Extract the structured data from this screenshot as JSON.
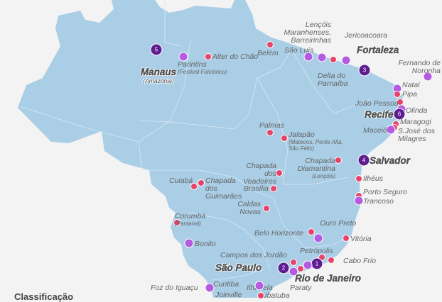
{
  "colors": {
    "land": "#a9cee6",
    "border": "#dbe9f3",
    "background": "#f3f3f3",
    "top": "#5d1c8f",
    "highlight": "#b55be2",
    "other": "#e8436b"
  },
  "legend": {
    "title": "Classificação"
  },
  "places": [
    {
      "name": "Manaus",
      "sub": "(Amazônia)",
      "type": "top",
      "rank": "5"
    },
    {
      "name": "Parintins",
      "sub": "(Festival Folclórico)",
      "type": "highlight"
    },
    {
      "name": "Alter do Chão",
      "type": "other"
    },
    {
      "name": "Belém",
      "type": "other"
    },
    {
      "name": "São Luís",
      "type": "highlight"
    },
    {
      "name": "Lençóis Maranhenses, Barreirinhas",
      "type": "highlight"
    },
    {
      "name": "Delta do Parnaíba",
      "type": "other"
    },
    {
      "name": "Jericoacoara",
      "type": "highlight"
    },
    {
      "name": "Fortaleza",
      "type": "top",
      "rank": "3"
    },
    {
      "name": "Fernando de Noronha",
      "type": "highlight"
    },
    {
      "name": "Natal",
      "type": "highlight"
    },
    {
      "name": "Pipa",
      "type": "other"
    },
    {
      "name": "João Pessoa",
      "type": "other"
    },
    {
      "name": "Olinda",
      "type": "highlight"
    },
    {
      "name": "Recife",
      "type": "top",
      "rank": "6"
    },
    {
      "name": "Maragogi",
      "type": "other"
    },
    {
      "name": "S.José dos Milagres",
      "type": "other"
    },
    {
      "name": "Maceió",
      "type": "highlight"
    },
    {
      "name": "Palmas",
      "type": "other"
    },
    {
      "name": "Jalapão",
      "sub": "(Mateiros, Ponte Alta, São Félix)",
      "type": "other"
    },
    {
      "name": "Chapada Diamantina",
      "sub": "(Lençóis)",
      "type": "other"
    },
    {
      "name": "Salvador",
      "type": "top",
      "rank": "4"
    },
    {
      "name": "Ilhéus",
      "type": "other"
    },
    {
      "name": "Porto Seguro",
      "type": "other"
    },
    {
      "name": "Trancoso",
      "type": "highlight"
    },
    {
      "name": "Chapada dos Veadeiros",
      "type": "other"
    },
    {
      "name": "Cuiabá",
      "type": "other"
    },
    {
      "name": "Chapada dos Guimarães",
      "type": "other"
    },
    {
      "name": "Brasília",
      "type": "other"
    },
    {
      "name": "Caldas Novas",
      "type": "other"
    },
    {
      "name": "Corumbá",
      "sub": "(Pantanal)",
      "type": "other"
    },
    {
      "name": "Bonito",
      "type": "highlight"
    },
    {
      "name": "Belo Horizonte",
      "type": "other"
    },
    {
      "name": "Ouro Preto",
      "type": "highlight"
    },
    {
      "name": "Vitória",
      "type": "other"
    },
    {
      "name": "Petrópolis",
      "type": "other"
    },
    {
      "name": "Cabo Frio",
      "type": "other"
    },
    {
      "name": "Rio de Janeiro",
      "type": "top",
      "rank": "1"
    },
    {
      "name": "Campos dos Jordão",
      "type": "other"
    },
    {
      "name": "São Paulo",
      "type": "top",
      "rank": "2"
    },
    {
      "name": "Ilhabela",
      "type": "highlight"
    },
    {
      "name": "Ubatuba",
      "type": "other"
    },
    {
      "name": "Paraty",
      "type": "highlight"
    },
    {
      "name": "Curitiba",
      "type": "highlight"
    },
    {
      "name": "Joinville",
      "type": "other"
    },
    {
      "name": "Foz do Iguaçu",
      "type": "highlight"
    }
  ]
}
